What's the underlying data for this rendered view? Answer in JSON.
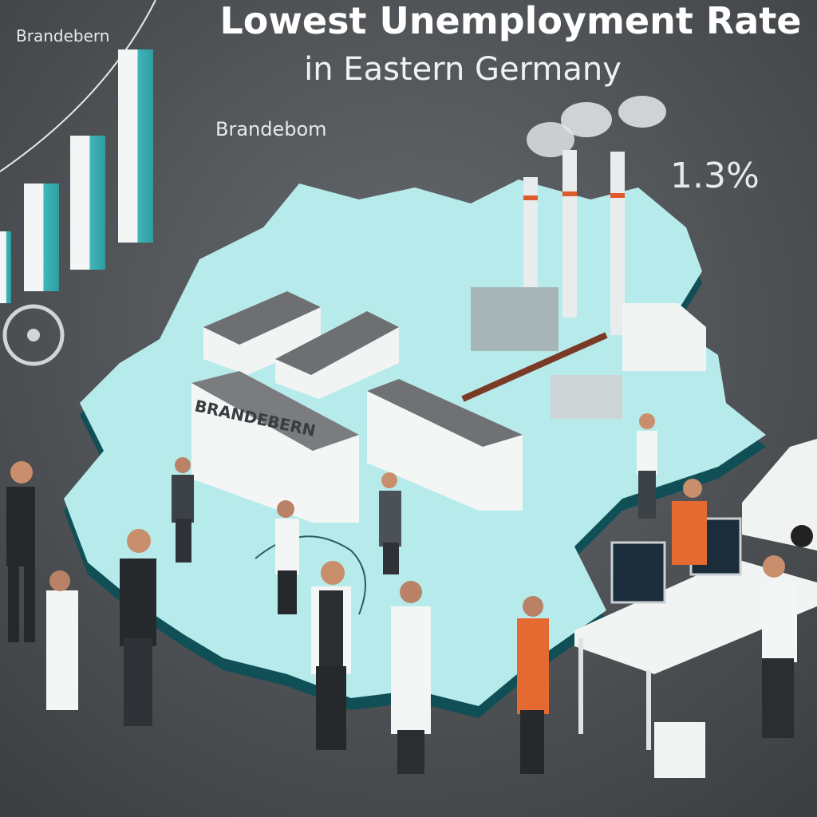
{
  "header": {
    "title": "Lowest Unemployment Rate",
    "subtitle": "in Eastern Germany"
  },
  "labels": {
    "corner": "Brandebern",
    "map": "Brandebom",
    "rate": "1.3%",
    "building": "BRANDEBERN"
  }
}
